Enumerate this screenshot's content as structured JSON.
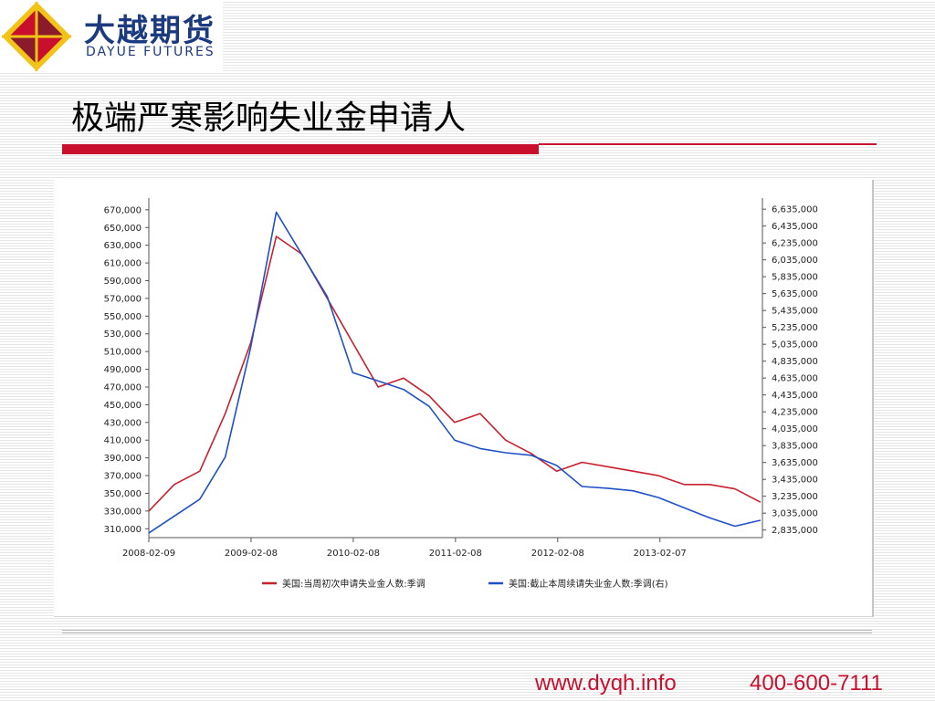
{
  "brand": {
    "name_cn": "大越期货",
    "name_en": "DAYUE FUTURES",
    "colors": {
      "navy": "#1c3a80",
      "red": "#c8102e",
      "gold": "#f2c418",
      "maroon": "#8b1a2b"
    }
  },
  "slide": {
    "title": "极端严寒影响失业金申请人"
  },
  "footer": {
    "url": "www.dyqh.info",
    "phone": "400-600-7111"
  },
  "chart_data": {
    "type": "line",
    "title": "",
    "x": [
      "2008-02-09",
      "2008-05-10",
      "2008-08-09",
      "2008-11-08",
      "2009-02-07",
      "2009-05-09",
      "2009-08-08",
      "2009-11-07",
      "2010-02-06",
      "2010-05-08",
      "2010-08-07",
      "2010-11-06",
      "2011-02-05",
      "2011-05-07",
      "2011-08-06",
      "2011-11-05",
      "2012-02-04",
      "2012-05-05",
      "2012-08-04",
      "2012-11-03",
      "2013-02-02",
      "2013-05-04",
      "2013-08-03",
      "2013-11-02",
      "2014-02-01"
    ],
    "x_ticks": [
      "2008-02-09",
      "2009-02-08",
      "2010-02-08",
      "2011-02-08",
      "2012-02-08",
      "2013-02-07"
    ],
    "x_range": [
      "2008-02-09",
      "2014-02-08"
    ],
    "y_left": {
      "range": [
        300000,
        675000
      ],
      "ticks": [
        "670,000",
        "650,000",
        "630,000",
        "610,000",
        "590,000",
        "570,000",
        "550,000",
        "530,000",
        "510,000",
        "490,000",
        "470,000",
        "450,000",
        "430,000",
        "410,000",
        "390,000",
        "370,000",
        "350,000",
        "330,000",
        "310,000"
      ]
    },
    "y_right": {
      "range": [
        2745000,
        6680000
      ],
      "ticks": [
        "6,635,000",
        "6,435,000",
        "6,235,000",
        "6,035,000",
        "5,835,000",
        "5,635,000",
        "5,435,000",
        "5,235,000",
        "5,035,000",
        "4,835,000",
        "4,635,000",
        "4,435,000",
        "4,235,000",
        "4,035,000",
        "3,835,000",
        "3,635,000",
        "3,435,000",
        "3,235,000",
        "3,035,000",
        "2,835,000"
      ]
    },
    "series": [
      {
        "name": "美国:当周初次申请失业金人数:季调",
        "axis": "left",
        "color": "#c8202e",
        "values": [
          330000,
          360000,
          375000,
          440000,
          520000,
          640000,
          620000,
          570000,
          520000,
          470000,
          480000,
          460000,
          430000,
          440000,
          410000,
          395000,
          375000,
          385000,
          380000,
          375000,
          370000,
          360000,
          360000,
          355000,
          340000
        ]
      },
      {
        "name": "美国:截止本周续请失业金人数:季调(右)",
        "axis": "right",
        "color": "#2050c8",
        "values": [
          2800000,
          3000000,
          3200000,
          3700000,
          5000000,
          6600000,
          6100000,
          5600000,
          4700000,
          4600000,
          4500000,
          4300000,
          3900000,
          3800000,
          3750000,
          3720000,
          3600000,
          3350000,
          3330000,
          3300000,
          3220000,
          3100000,
          2980000,
          2880000,
          2950000
        ]
      }
    ],
    "legend_position": "bottom",
    "grid": false
  }
}
